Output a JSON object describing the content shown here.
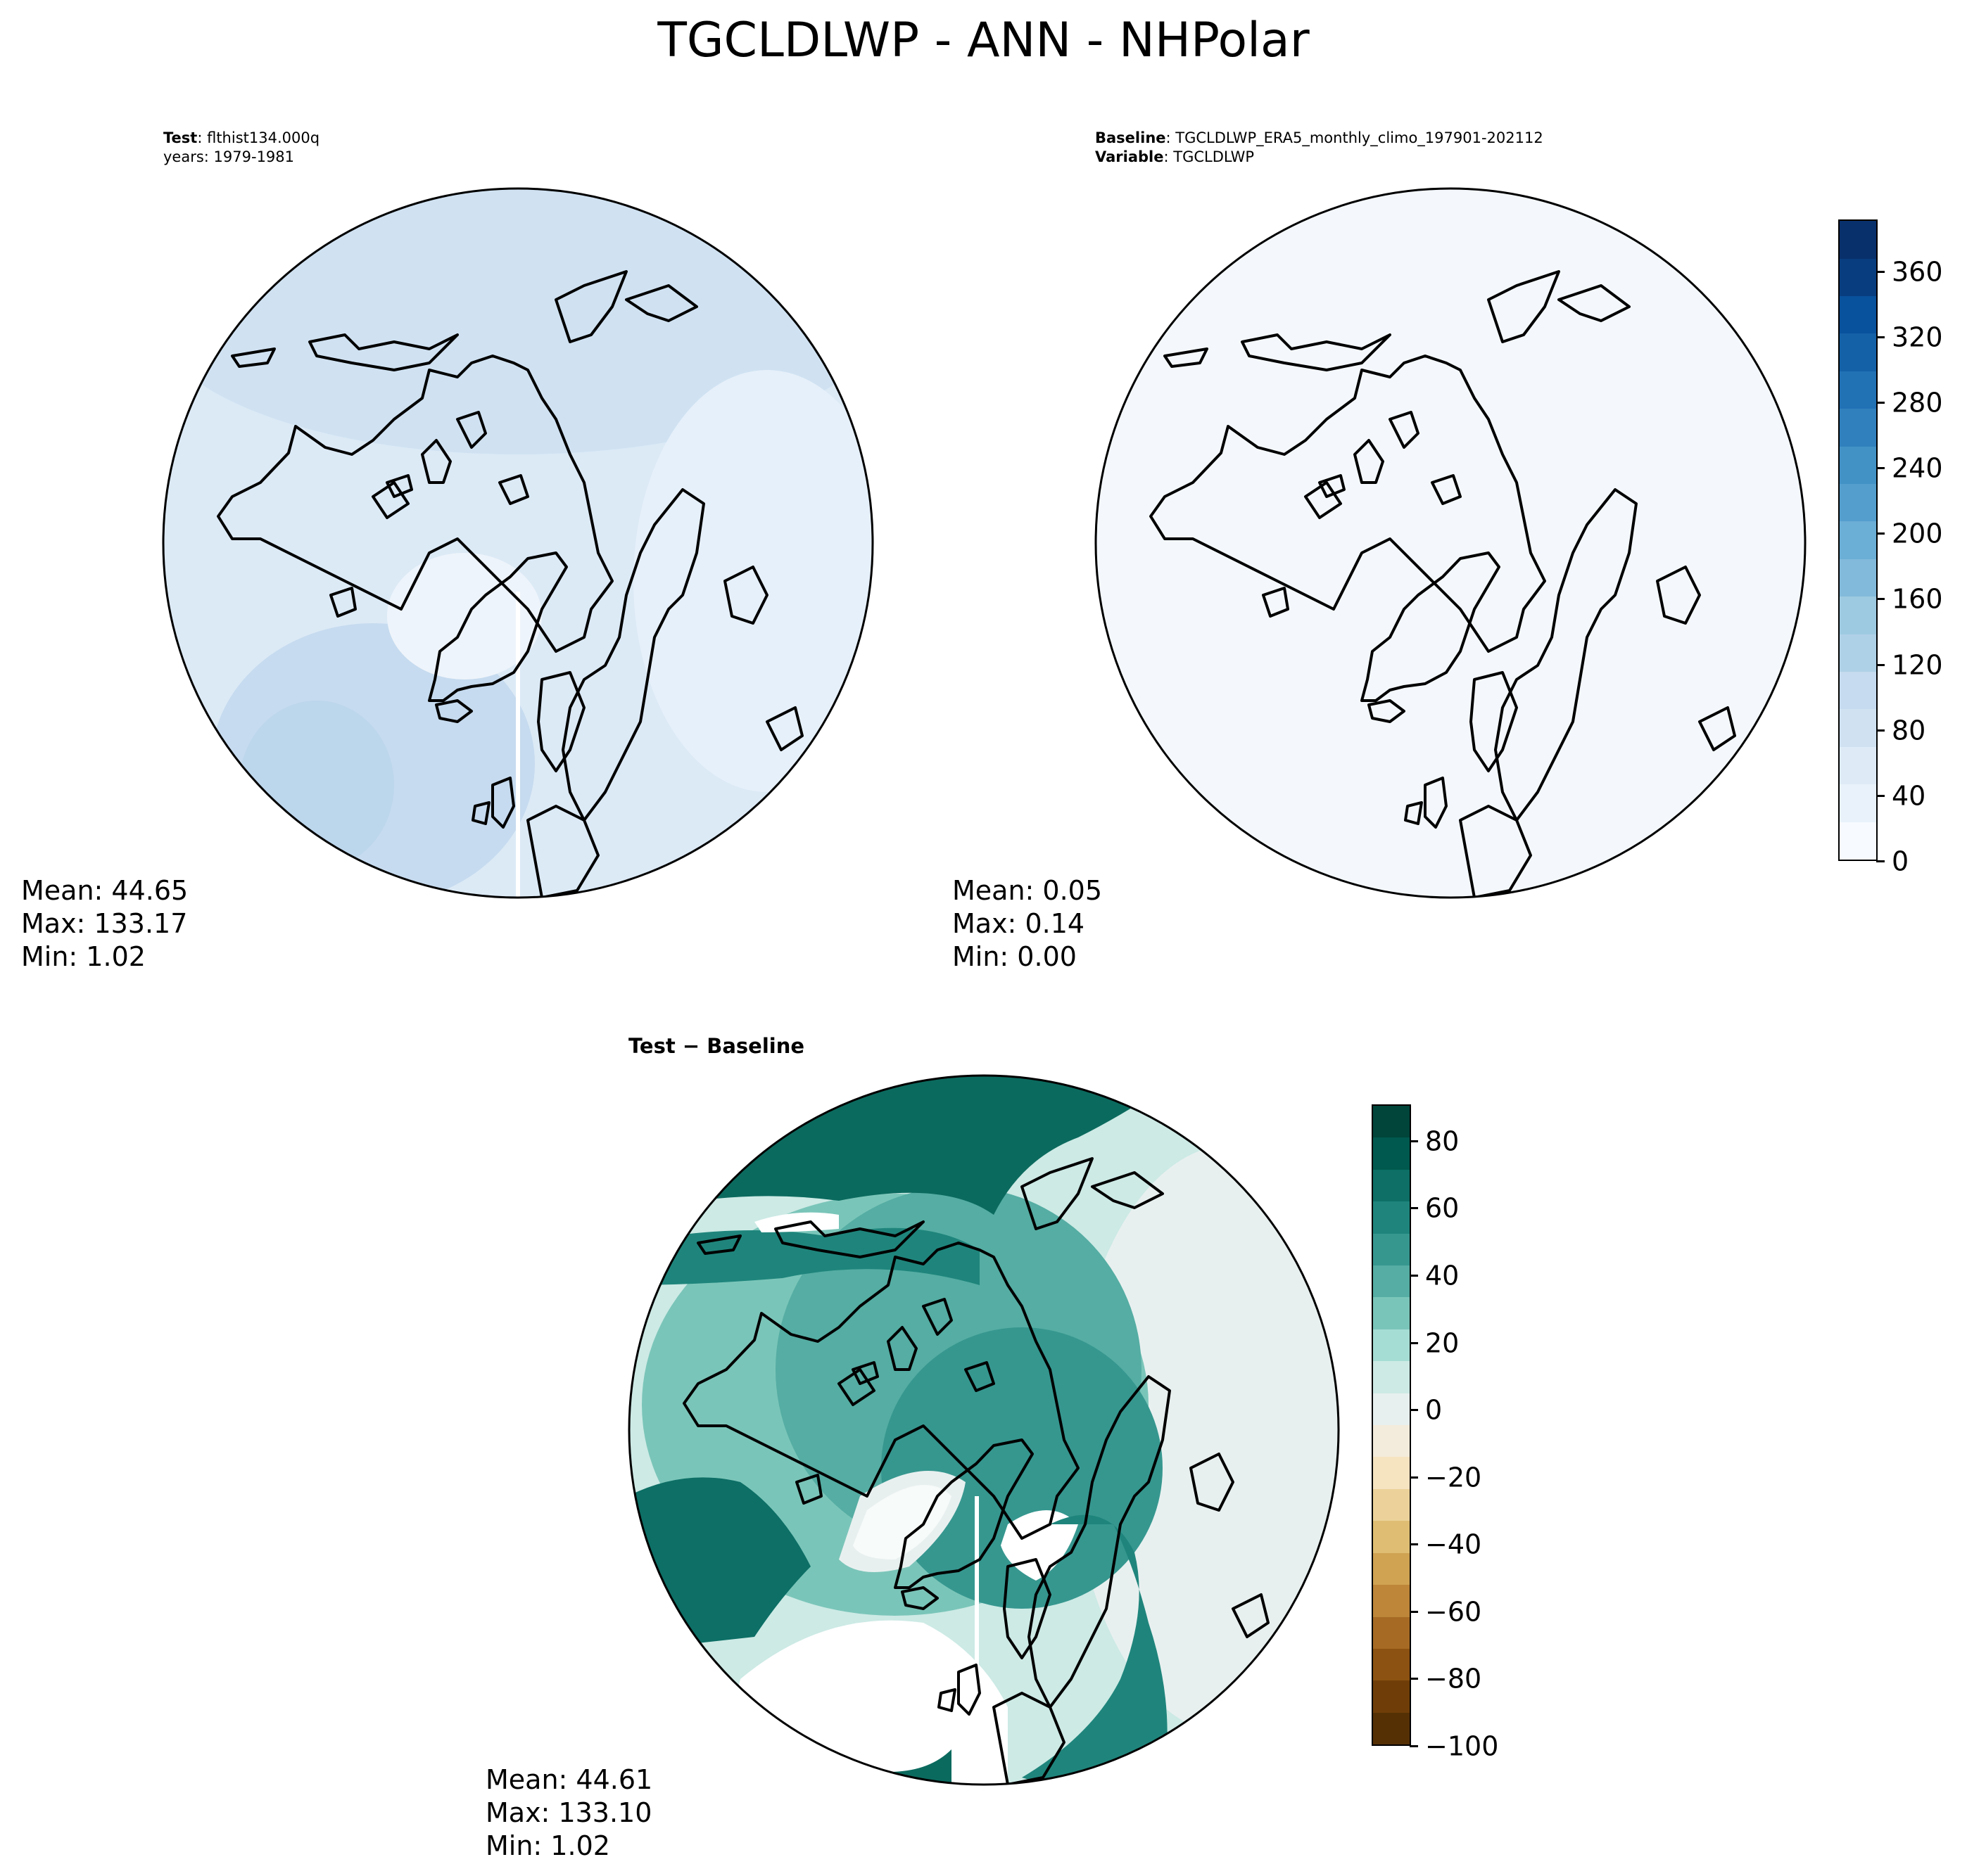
{
  "suptitle": "TGCLDLWP - ANN - NHPolar",
  "test_panel": {
    "label": "Test",
    "case": "flthist134.000q",
    "years": "years: 1979-1981",
    "stats": {
      "mean": "Mean: 44.65",
      "max": "Max: 133.17",
      "min": "Min:  1.02"
    }
  },
  "baseline_panel": {
    "label": "Baseline",
    "case": "TGCLDLWP_ERA5_monthly_climo_197901-202112",
    "variable_label": "Variable",
    "variable": "TGCLDLWP",
    "stats": {
      "mean": "Mean:  0.05",
      "max": "Max:  0.14",
      "min": "Min:  0.00"
    }
  },
  "diff_panel": {
    "title": "Test − Baseline",
    "stats": {
      "mean": "Mean: 44.61",
      "max": "Max: 133.10",
      "min": "Min:  1.02"
    }
  },
  "colorbar_main": {
    "ticks": [
      "0",
      "40",
      "80",
      "120",
      "160",
      "200",
      "240",
      "280",
      "320",
      "360"
    ],
    "colors": [
      "#f7fbff",
      "#e9f2fa",
      "#deebf7",
      "#d0e2f2",
      "#c6dbef",
      "#afd1e7",
      "#9ecae1",
      "#82badb",
      "#6baed6",
      "#539ecd",
      "#4292c6",
      "#3080bd",
      "#2171b5",
      "#1461a8",
      "#08519c",
      "#083e80",
      "#08306b"
    ]
  },
  "colorbar_diff": {
    "ticks": [
      "80",
      "60",
      "40",
      "20",
      "0",
      "−20",
      "−40",
      "−60",
      "−80",
      "−100"
    ],
    "colors": [
      "#00443a",
      "#00594e",
      "#0d6f66",
      "#1f857c",
      "#36978f",
      "#55ada3",
      "#7ac5b9",
      "#a5ddd4",
      "#cdeae5",
      "#e8f0ef",
      "#f3ecdc",
      "#f6e3c0",
      "#ecd29a",
      "#dfbe73",
      "#cfa352",
      "#bd8639",
      "#a66a24",
      "#8c5211",
      "#6f3e08",
      "#553005"
    ]
  },
  "map_colors": {
    "test_field": "#dceaf6",
    "test_deep": "#bcd6ec",
    "baseline_field": "#f4f8fc",
    "diff_mid": "#5fb3aa",
    "diff_dark": "#0b6a5e",
    "diff_pale": "#d7eeea",
    "coastline": "#000000"
  }
}
